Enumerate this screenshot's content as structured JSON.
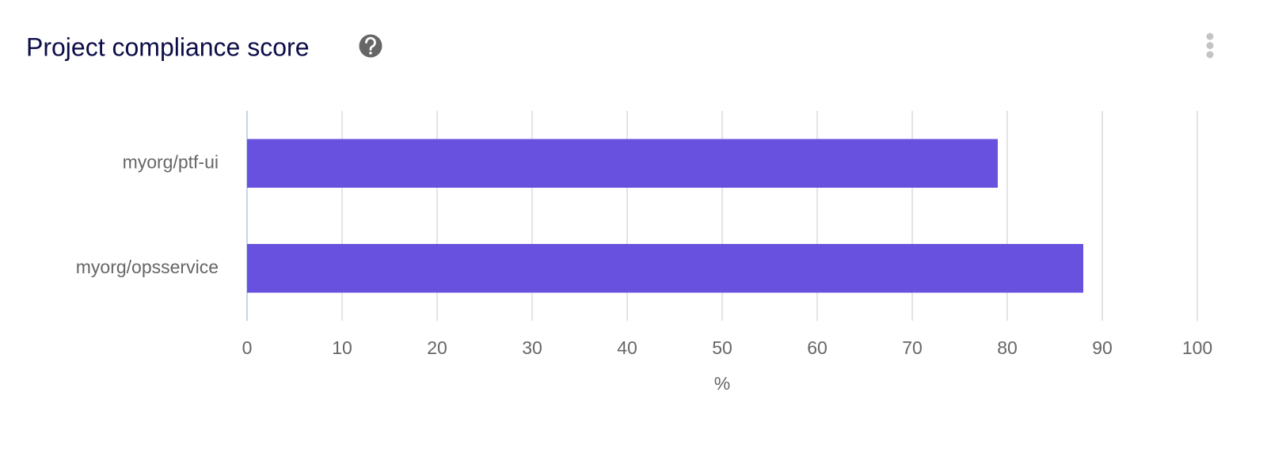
{
  "chart_data": {
    "type": "bar",
    "orientation": "horizontal",
    "title": "Project compliance score",
    "categories": [
      "myorg/ptf-ui",
      "myorg/opsservice"
    ],
    "values": [
      79,
      88
    ],
    "color": "#6951e0",
    "xlabel": "%",
    "xlim": [
      0,
      100
    ],
    "xticks": [
      0,
      10,
      20,
      30,
      40,
      50,
      60,
      70,
      80,
      90,
      100
    ],
    "grid": true
  }
}
